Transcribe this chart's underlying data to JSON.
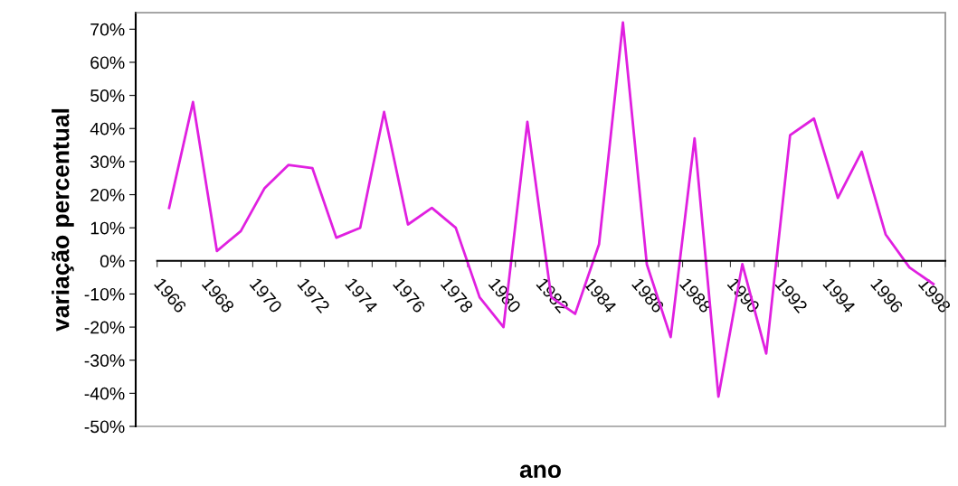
{
  "chart_data": {
    "type": "line",
    "xlabel": "ano",
    "ylabel": "variação percentual",
    "categories": [
      "1966",
      null,
      "1968",
      null,
      "1970",
      null,
      "1972",
      null,
      "1974",
      null,
      "1976",
      null,
      "1978",
      null,
      "1980",
      null,
      "1982",
      null,
      "1984",
      null,
      "1986",
      null,
      "1988",
      null,
      "1990",
      null,
      "1992",
      null,
      "1994",
      null,
      "1996",
      null,
      "1998"
    ],
    "series": [
      {
        "color": "#e020e0",
        "values": [
          16,
          48,
          3,
          9,
          22,
          29,
          28,
          7,
          10,
          45,
          11,
          16,
          10,
          -11,
          -20,
          42,
          -11,
          -16,
          5,
          72,
          -1,
          -23,
          37,
          -41,
          -1,
          -28,
          38,
          43,
          19,
          33,
          8,
          -2,
          -7
        ]
      }
    ],
    "ylim": [
      -50,
      75
    ],
    "yticks": [
      {
        "value": -50,
        "label": "-50%"
      },
      {
        "value": -40,
        "label": "-40%"
      },
      {
        "value": -30,
        "label": "-30%"
      },
      {
        "value": -20,
        "label": "-20%"
      },
      {
        "value": -10,
        "label": "-10%"
      },
      {
        "value": 0,
        "label": "0%"
      },
      {
        "value": 10,
        "label": "10%"
      },
      {
        "value": 20,
        "label": "20%"
      },
      {
        "value": 30,
        "label": "30%"
      },
      {
        "value": 40,
        "label": "40%"
      },
      {
        "value": 50,
        "label": "50%"
      },
      {
        "value": 60,
        "label": "60%"
      },
      {
        "value": 70,
        "label": "70%"
      }
    ],
    "grid": false,
    "marker": "none",
    "line_style": "solid"
  }
}
